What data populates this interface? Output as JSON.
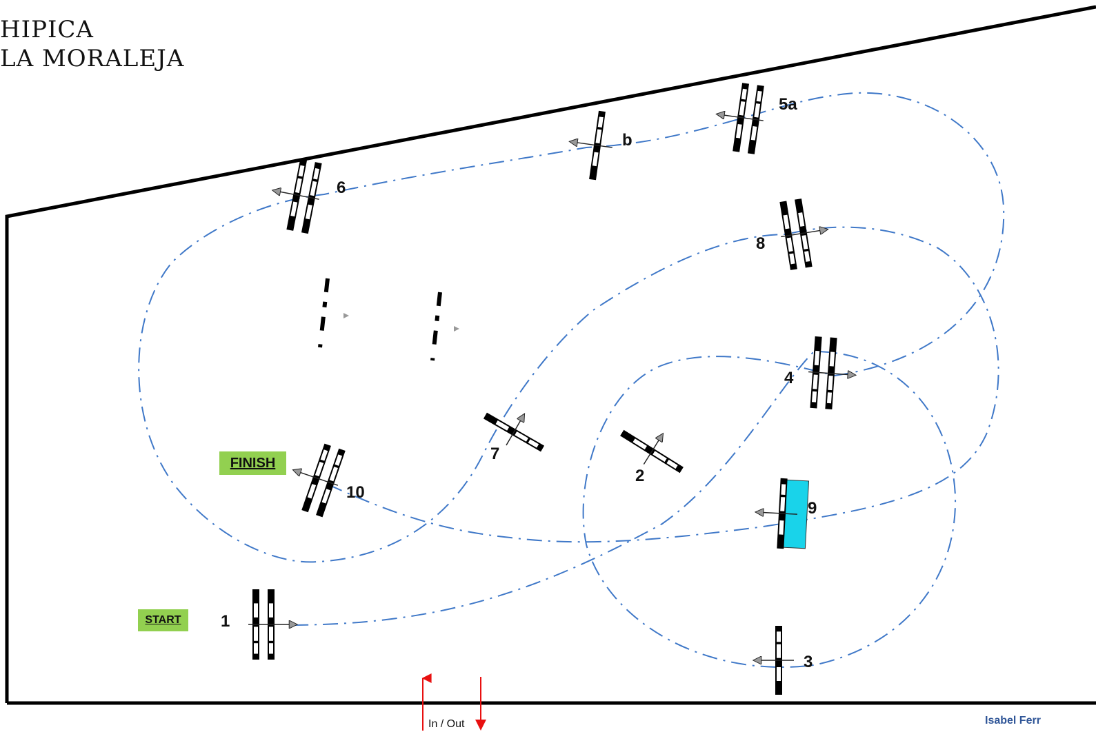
{
  "logo": {
    "line1": "HIPICA",
    "line2": "LA MORALEJA"
  },
  "labels": {
    "start": "START",
    "finish": "FINISH",
    "in_out": "In / Out",
    "designer": "Isabel Ferr"
  },
  "colors": {
    "route": "#3f78c8",
    "arrow": "#e81010",
    "liverpool": "#19d3ea",
    "label_bg": "#92d050",
    "designer": "#2f5597"
  },
  "obstacles": [
    {
      "id": "1",
      "label": "1",
      "kind": "oxer"
    },
    {
      "id": "2",
      "label": "2",
      "kind": "vertical"
    },
    {
      "id": "3",
      "label": "3",
      "kind": "vertical"
    },
    {
      "id": "4",
      "label": "4",
      "kind": "oxer"
    },
    {
      "id": "5a",
      "label": "5a",
      "kind": "oxer"
    },
    {
      "id": "b",
      "label": "b",
      "kind": "vertical"
    },
    {
      "id": "6",
      "label": "6",
      "kind": "oxer"
    },
    {
      "id": "7",
      "label": "7",
      "kind": "vertical"
    },
    {
      "id": "8",
      "label": "8",
      "kind": "oxer"
    },
    {
      "id": "9",
      "label": "9",
      "kind": "liverpool"
    },
    {
      "id": "10",
      "label": "10",
      "kind": "oxer"
    }
  ]
}
